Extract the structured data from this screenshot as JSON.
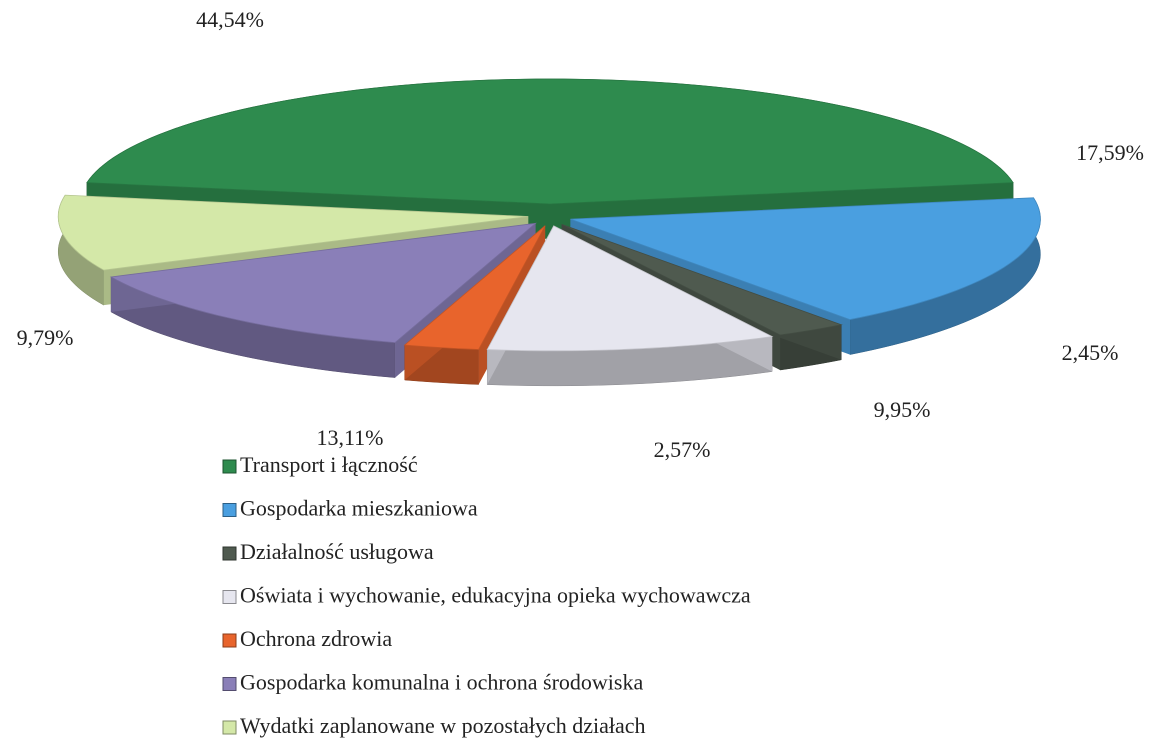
{
  "chart_data": {
    "type": "pie",
    "categories": [
      "Transport i łączność",
      "Gospodarka mieszkaniowa",
      "Działalność usługowa",
      "Oświata i wychowanie, edukacyjna opieka wychowawcza",
      "Ochrona zdrowia",
      "Gospodarka komunalna i ochrona środowiska",
      "Wydatki zaplanowane w pozostałych działach"
    ],
    "values": [
      44.54,
      17.59,
      2.45,
      9.95,
      2.57,
      13.11,
      9.79
    ],
    "value_labels": [
      "44,54%",
      "17,59%",
      "2,45%",
      "9,95%",
      "2,57%",
      "13,11%",
      "9,79%"
    ],
    "colors": [
      "#2e8b4e",
      "#4a9fe0",
      "#4f5a4f",
      "#e6e6ef",
      "#e8642c",
      "#8a7fb8",
      "#d4e8a8"
    ]
  }
}
